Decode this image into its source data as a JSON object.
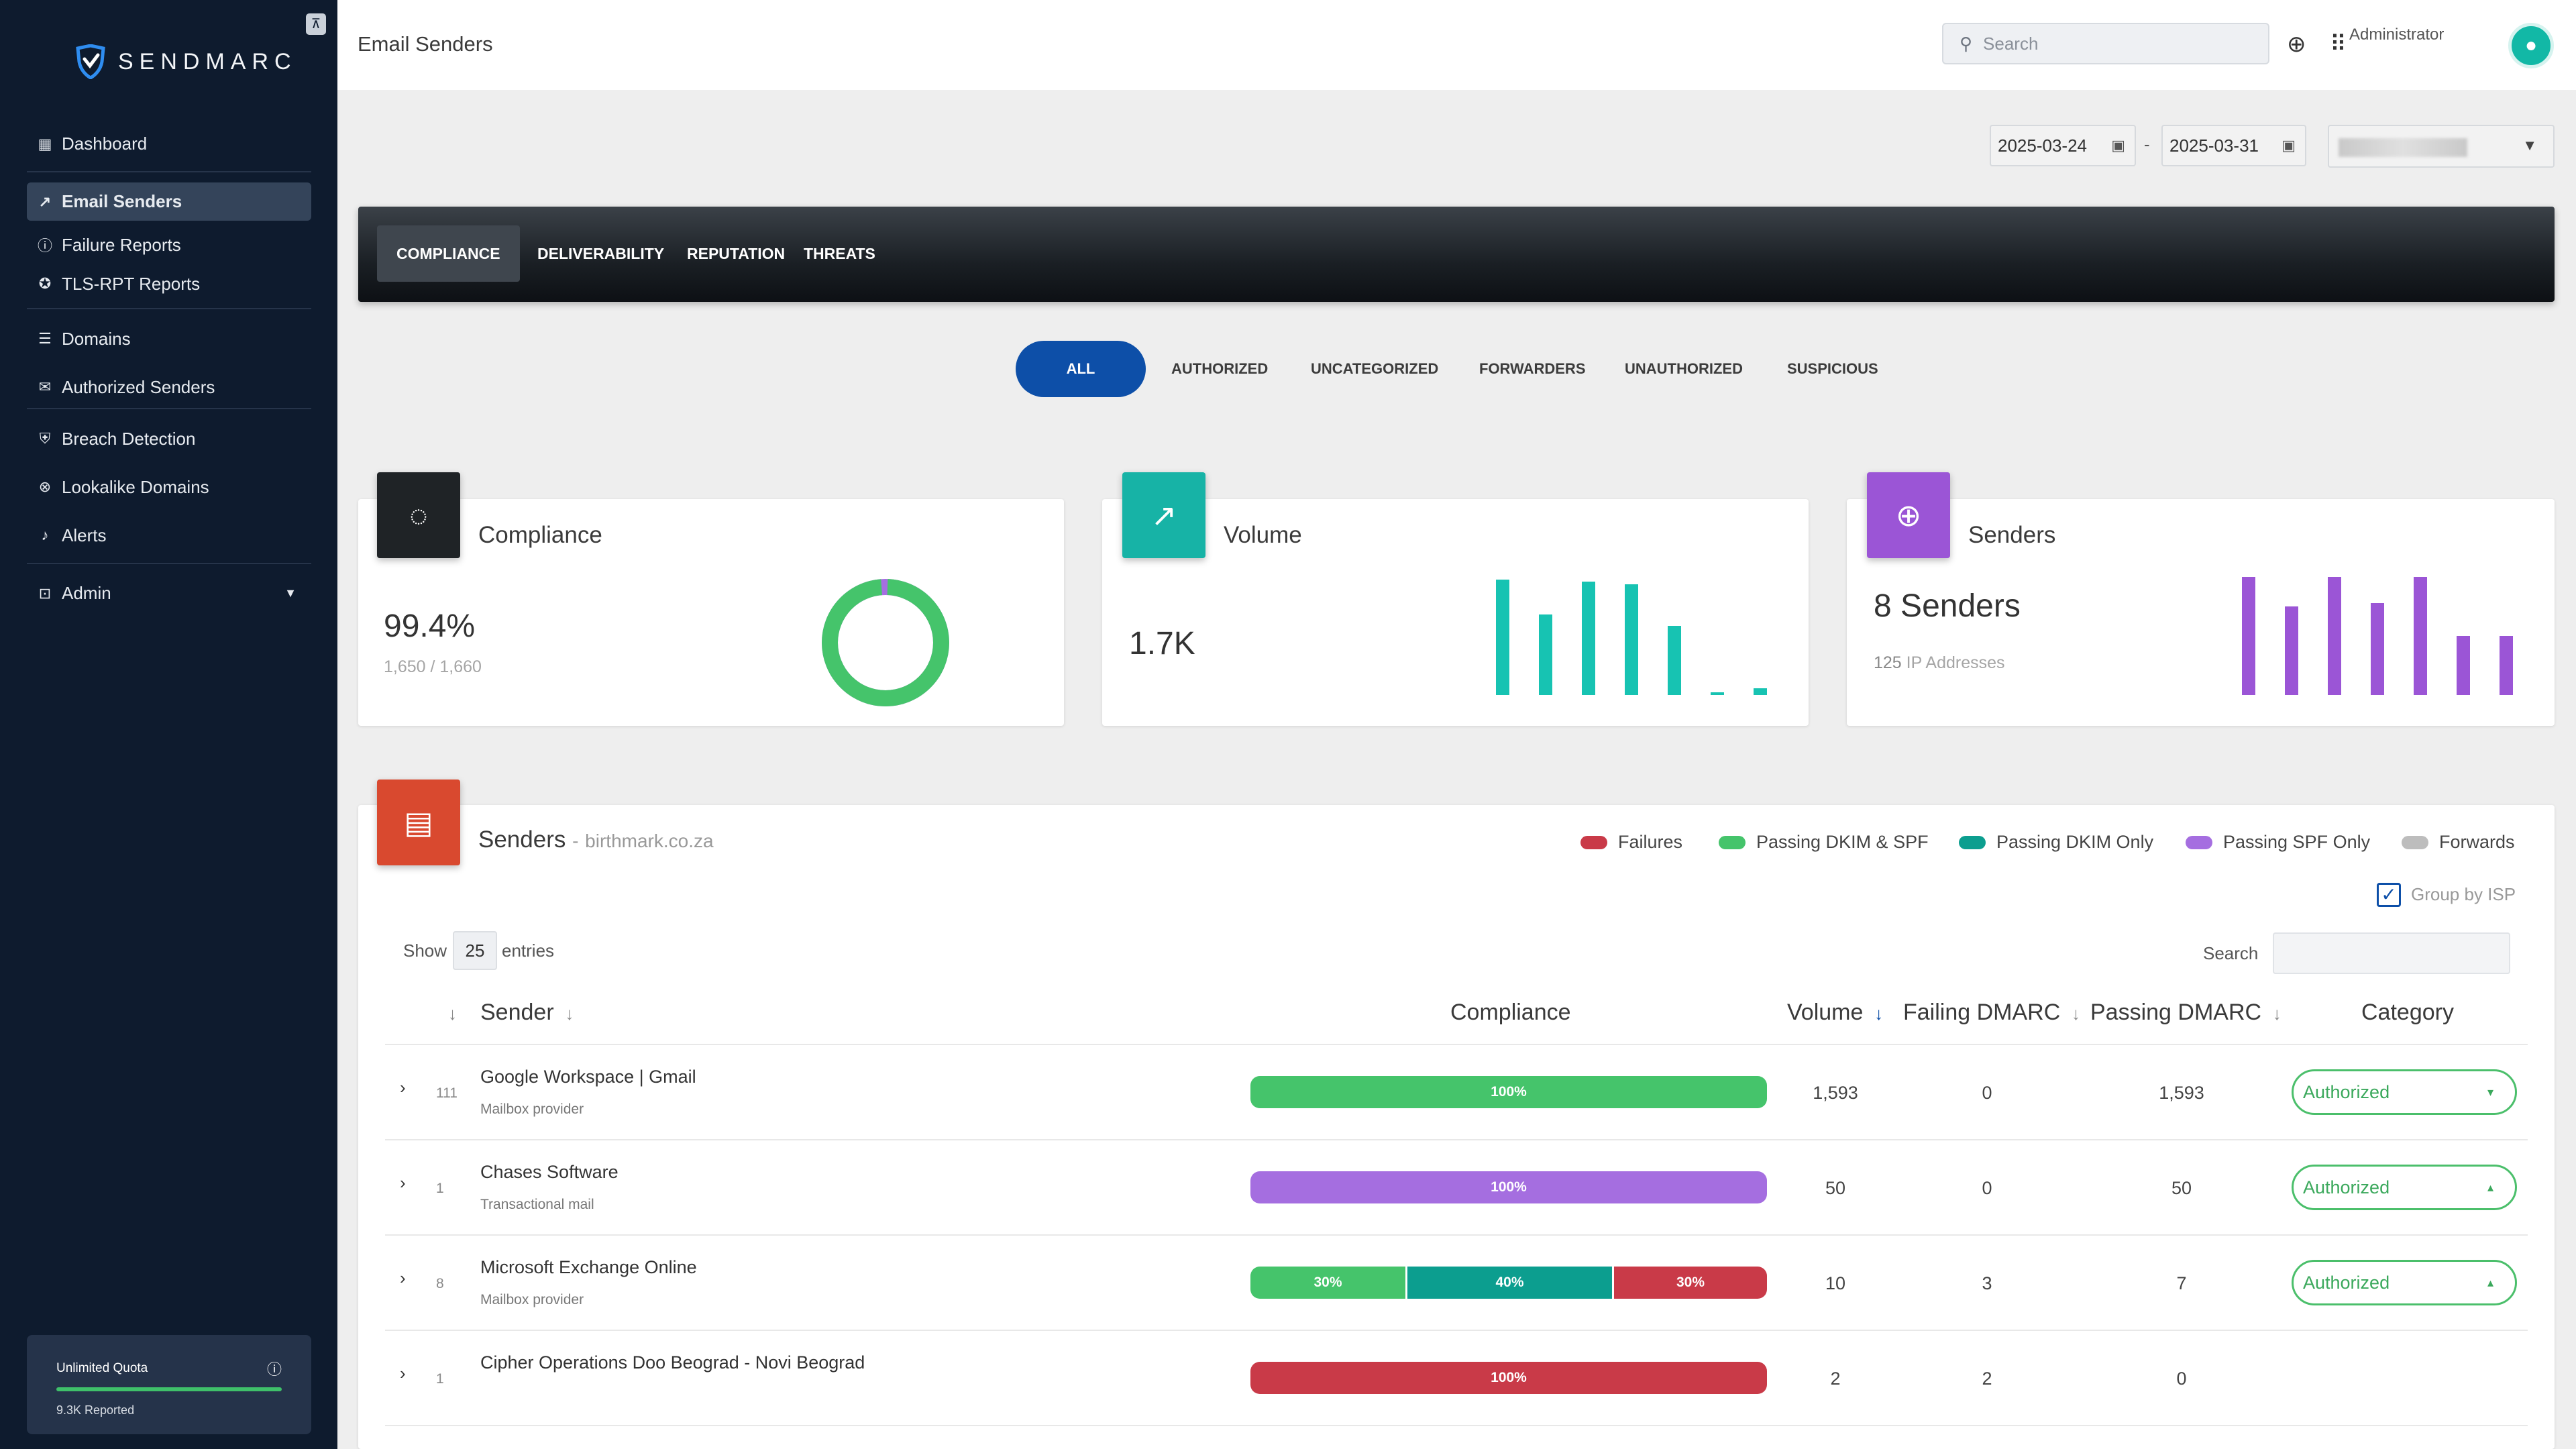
{
  "sidebar": {
    "brand": "SENDMARC",
    "items": [
      {
        "label": "Dashboard",
        "icon": "dashboard-icon"
      },
      {
        "label": "Email Senders",
        "icon": "trend-line-icon",
        "active": true
      },
      {
        "label": "Failure Reports",
        "icon": "alert-circle-icon"
      },
      {
        "label": "TLS-RPT Reports",
        "icon": "shield-icon"
      },
      {
        "label": "Domains",
        "icon": "server-icon"
      },
      {
        "label": "Authorized Senders",
        "icon": "mail-check-icon"
      },
      {
        "label": "Breach Detection",
        "icon": "security-icon"
      },
      {
        "label": "Lookalike Domains",
        "icon": "search-web-icon"
      },
      {
        "label": "Alerts",
        "icon": "bell-icon"
      },
      {
        "label": "Admin",
        "icon": "admin-icon"
      }
    ],
    "quota": {
      "title": "Unlimited Quota",
      "reported": "9.3K Reported",
      "fill": 1.0
    }
  },
  "header": {
    "title": "Email Senders",
    "search_placeholder": "Search",
    "user_role": "Administrator"
  },
  "date_range": {
    "start": "2025-03-24",
    "separator": "-",
    "end": "2025-03-31"
  },
  "tabs": [
    "COMPLIANCE",
    "DELIVERABILITY",
    "REPUTATION",
    "THREATS"
  ],
  "active_tab": "COMPLIANCE",
  "filters": [
    "ALL",
    "AUTHORIZED",
    "UNCATEGORIZED",
    "FORWARDERS",
    "UNAUTHORIZED",
    "SUSPICIOUS"
  ],
  "active_filter": "ALL",
  "cards": {
    "compliance": {
      "title": "Compliance",
      "value": "99.4%",
      "sub": "1,650 / 1,660",
      "donut_pass": 0.994
    },
    "volume": {
      "title": "Volume",
      "value": "1.7K",
      "bars": [
        1.0,
        0.7,
        0.98,
        0.96,
        0.6,
        0.02,
        0.06
      ]
    },
    "senders": {
      "title": "Senders",
      "value_num": "8",
      "value_unit": "Senders",
      "sub_num": "125",
      "sub_label": "IP Addresses",
      "bars": [
        1.0,
        0.75,
        1.0,
        0.78,
        1.0,
        0.5,
        0.5
      ]
    }
  },
  "senders_table": {
    "title": "Senders",
    "domain": "birthmark.co.za",
    "legend": [
      {
        "label": "Failures",
        "color": "#c93a48"
      },
      {
        "label": "Passing DKIM & SPF",
        "color": "#45c46b"
      },
      {
        "label": "Passing DKIM Only",
        "color": "#0c9e8f"
      },
      {
        "label": "Passing SPF Only",
        "color": "#a56ee0"
      },
      {
        "label": "Forwards",
        "color": "#bdbdbd"
      }
    ],
    "group_by_isp": "Group by ISP",
    "show_label": "Show",
    "entries_value": "25",
    "entries_label": "entries",
    "search_label": "Search",
    "columns": [
      "Sender",
      "Compliance",
      "Volume",
      "Failing DMARC",
      "Passing DMARC",
      "Category"
    ],
    "rows": [
      {
        "count": "111",
        "name": "Google Workspace | Gmail",
        "type": "Mailbox provider",
        "segments": [
          {
            "label": "100%",
            "share": 1.0,
            "color": "#45c46b"
          }
        ],
        "volume": "1,593",
        "failing": "0",
        "passing": "1,593",
        "category": "Authorized",
        "caret": "▾"
      },
      {
        "count": "1",
        "name": "Chases Software",
        "type": "Transactional mail",
        "segments": [
          {
            "label": "100%",
            "share": 1.0,
            "color": "#a56ee0"
          }
        ],
        "volume": "50",
        "failing": "0",
        "passing": "50",
        "category": "Authorized",
        "caret": "▴"
      },
      {
        "count": "8",
        "name": "Microsoft Exchange Online",
        "type": "Mailbox provider",
        "segments": [
          {
            "label": "30%",
            "share": 0.3,
            "color": "#45c46b"
          },
          {
            "label": "40%",
            "share": 0.4,
            "color": "#0c9e8f"
          },
          {
            "label": "30%",
            "share": 0.3,
            "color": "#c93a48"
          }
        ],
        "volume": "10",
        "failing": "3",
        "passing": "7",
        "category": "Authorized",
        "caret": "▴"
      },
      {
        "count": "1",
        "name": "Cipher Operations Doo Beograd - Novi Beograd",
        "type": "",
        "segments": [
          {
            "label": "100%",
            "share": 1.0,
            "color": "#c93a48"
          }
        ],
        "volume": "2",
        "failing": "2",
        "passing": "0",
        "category": "",
        "caret": ""
      }
    ]
  },
  "colors": {
    "accent": "#0d4fa8",
    "sidebar_bg": "#0e1b2e",
    "compliance_icon_bg": "#1f2326",
    "volume_icon_bg": "#17b3a6",
    "senders_icon_bg": "#9b55d6",
    "table_icon_bg": "#d9492f"
  }
}
